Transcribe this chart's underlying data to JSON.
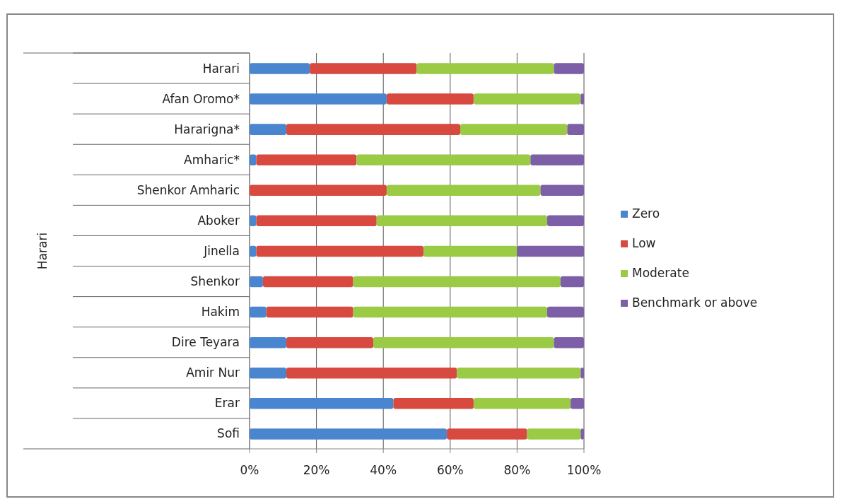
{
  "chart_data": {
    "type": "bar",
    "orientation": "horizontal",
    "stacked": true,
    "annotations": [
      "Harari"
    ],
    "categories": [
      "Harari",
      "Afan Oromo*",
      "Hararigna*",
      "Amharic*",
      "Shenkor Amharic",
      "Aboker",
      "Jinella",
      "Shenkor",
      "Hakim",
      "Dire Teyara",
      "Amir Nur",
      "Erar",
      "Sofi"
    ],
    "series": [
      {
        "name": "Zero",
        "color": "#4a86d0",
        "values": [
          18,
          41,
          11,
          2,
          0,
          2,
          2,
          4,
          5,
          11,
          11,
          43,
          59
        ]
      },
      {
        "name": "Low",
        "color": "#d84a3f",
        "values": [
          32,
          26,
          52,
          30,
          41,
          36,
          50,
          27,
          26,
          26,
          51,
          24,
          24
        ]
      },
      {
        "name": "Moderate",
        "color": "#9bcb45",
        "values": [
          41,
          32,
          32,
          52,
          46,
          51,
          28,
          62,
          58,
          54,
          37,
          29,
          16
        ]
      },
      {
        "name": "Benchmark or above",
        "color": "#7d5fa8",
        "values": [
          9,
          1,
          5,
          16,
          13,
          11,
          20,
          7,
          11,
          9,
          1,
          4,
          1
        ]
      }
    ],
    "xlim": [
      0,
      100
    ],
    "xticks": [
      {
        "value": 0,
        "label": "0%"
      },
      {
        "value": 20,
        "label": "20%"
      },
      {
        "value": 40,
        "label": "40%"
      },
      {
        "value": 60,
        "label": "60%"
      },
      {
        "value": 80,
        "label": "80%"
      },
      {
        "value": 100,
        "label": "100%"
      }
    ],
    "grid": "x",
    "legend": "right"
  }
}
